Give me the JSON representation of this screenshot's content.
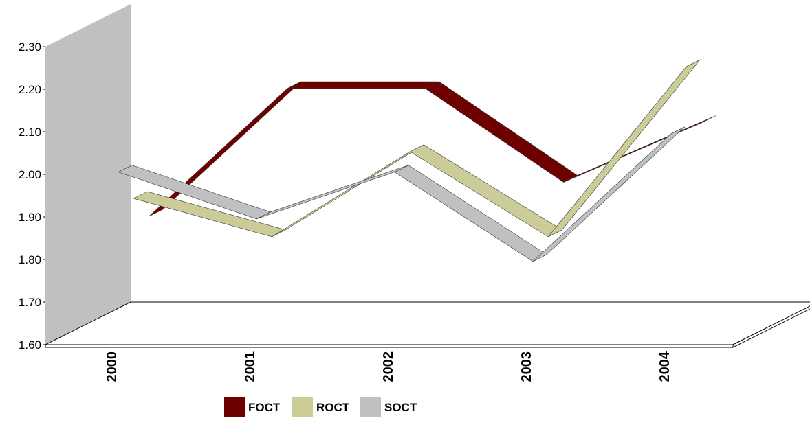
{
  "chart_data": {
    "type": "line",
    "style": "3d-ribbon",
    "x": [
      "2000",
      "2001",
      "2002",
      "2003",
      "2004"
    ],
    "yticks": [
      "1.60",
      "1.70",
      "1.80",
      "1.90",
      "2.00",
      "2.10",
      "2.20",
      "2.30"
    ],
    "ylim": [
      1.6,
      2.3
    ],
    "series": [
      {
        "name": "FOCT",
        "color": "#6e0000",
        "values": [
          1.88,
          2.18,
          2.18,
          1.96,
          2.1
        ]
      },
      {
        "name": "ROCT",
        "color": "#cccc99",
        "values": [
          1.94,
          1.85,
          2.05,
          1.85,
          2.25
        ]
      },
      {
        "name": "SOCT",
        "color": "#c0c0c0",
        "values": [
          2.02,
          1.91,
          2.02,
          1.81,
          2.11
        ]
      }
    ],
    "legend": "bottom"
  }
}
